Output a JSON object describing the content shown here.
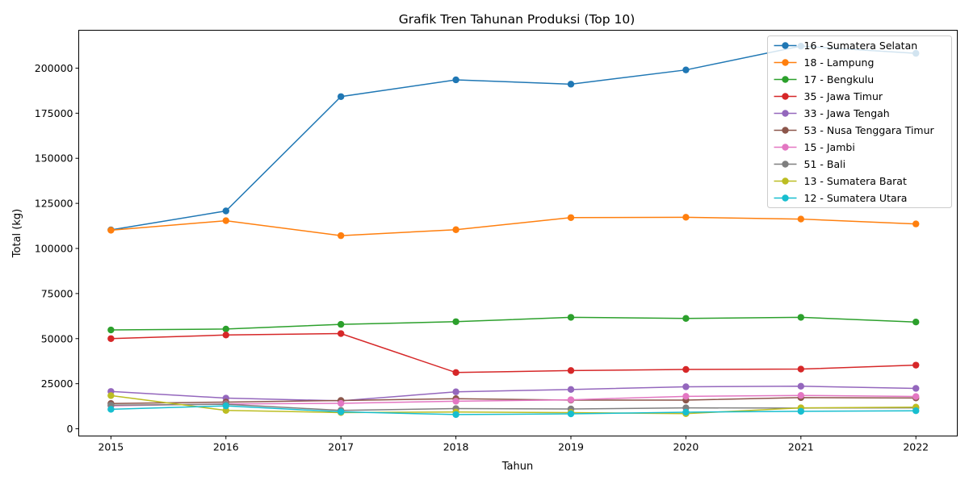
{
  "chart_data": {
    "type": "line",
    "title": "Grafik Tren Tahunan Produksi (Top 10)",
    "xlabel": "Tahun",
    "ylabel": "Total (kg)",
    "x": [
      2015,
      2016,
      2017,
      2018,
      2019,
      2020,
      2021,
      2022
    ],
    "xlim": [
      2014.72,
      2022.36
    ],
    "ylim": [
      -4000,
      221000
    ],
    "yticks": [
      0,
      25000,
      50000,
      75000,
      100000,
      125000,
      150000,
      175000,
      200000
    ],
    "legend_position": "top-right",
    "grid": false,
    "series": [
      {
        "name": "16 - Sumatera Selatan",
        "color": "#1f77b4",
        "values": [
          110300,
          120800,
          184200,
          193500,
          191100,
          199000,
          212200,
          208200
        ]
      },
      {
        "name": "18 - Lampung",
        "color": "#ff7f0e",
        "values": [
          110100,
          115400,
          107100,
          110400,
          117100,
          117300,
          116300,
          113600
        ]
      },
      {
        "name": "17 - Bengkulu",
        "color": "#2ca02c",
        "values": [
          54800,
          55300,
          57900,
          59400,
          61800,
          61200,
          61800,
          59200
        ]
      },
      {
        "name": "35 - Jawa Timur",
        "color": "#d62728",
        "values": [
          50000,
          52000,
          52800,
          31200,
          32300,
          32900,
          33100,
          35300
        ]
      },
      {
        "name": "33 - Jawa Tengah",
        "color": "#9467bd",
        "values": [
          20700,
          17000,
          15500,
          20500,
          21800,
          23300,
          23600,
          22400
        ]
      },
      {
        "name": "53 - Nusa Tenggara Timur",
        "color": "#8c564b",
        "values": [
          14000,
          14800,
          15700,
          16700,
          15900,
          15900,
          17300,
          17100
        ]
      },
      {
        "name": "15 - Jambi",
        "color": "#e377c2",
        "values": [
          12700,
          13800,
          14100,
          15300,
          16100,
          18000,
          18500,
          17900
        ]
      },
      {
        "name": "51 - Bali",
        "color": "#7f7f7f",
        "values": [
          13100,
          13600,
          10200,
          11200,
          11000,
          11600,
          11500,
          11600
        ]
      },
      {
        "name": "13 - Sumatera Barat",
        "color": "#bcbd22",
        "values": [
          18400,
          10200,
          9000,
          9300,
          9000,
          8400,
          11600,
          12000
        ]
      },
      {
        "name": "12 - Sumatera Utara",
        "color": "#17becf",
        "values": [
          10800,
          12700,
          9400,
          7900,
          8300,
          9200,
          9700,
          10000
        ]
      }
    ]
  }
}
